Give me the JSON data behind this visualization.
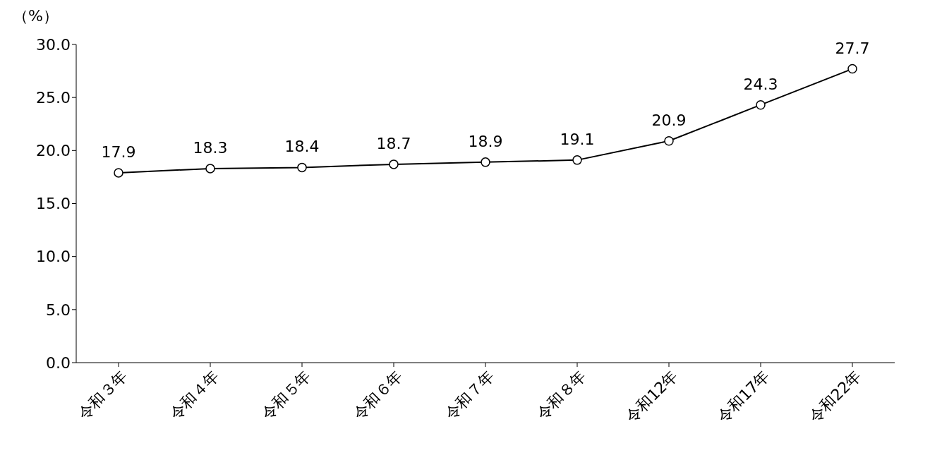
{
  "chart_data": {
    "type": "line",
    "ylabel": "（%）",
    "categories": [
      "令和３年",
      "令和４年",
      "令和５年",
      "令和６年",
      "令和７年",
      "令和８年",
      "令和12年",
      "令和17年",
      "令和22年"
    ],
    "series": [
      {
        "color": "#000000",
        "values": [
          17.9,
          18.3,
          18.4,
          18.7,
          18.9,
          19.1,
          20.9,
          24.3,
          27.7
        ]
      }
    ],
    "ylim": [
      0,
      30
    ],
    "yticks": [
      {
        "value": 0,
        "label": "0.0"
      },
      {
        "value": 5,
        "label": "5.0"
      },
      {
        "value": 10,
        "label": "10.0"
      },
      {
        "value": 15,
        "label": "15.0"
      },
      {
        "value": 20,
        "label": "20.0"
      },
      {
        "value": 25,
        "label": "25.0"
      },
      {
        "value": 30,
        "label": "30.0"
      }
    ],
    "grid": false,
    "legend": false,
    "marker": "circle",
    "line_style": "solid",
    "data_labels": true
  }
}
